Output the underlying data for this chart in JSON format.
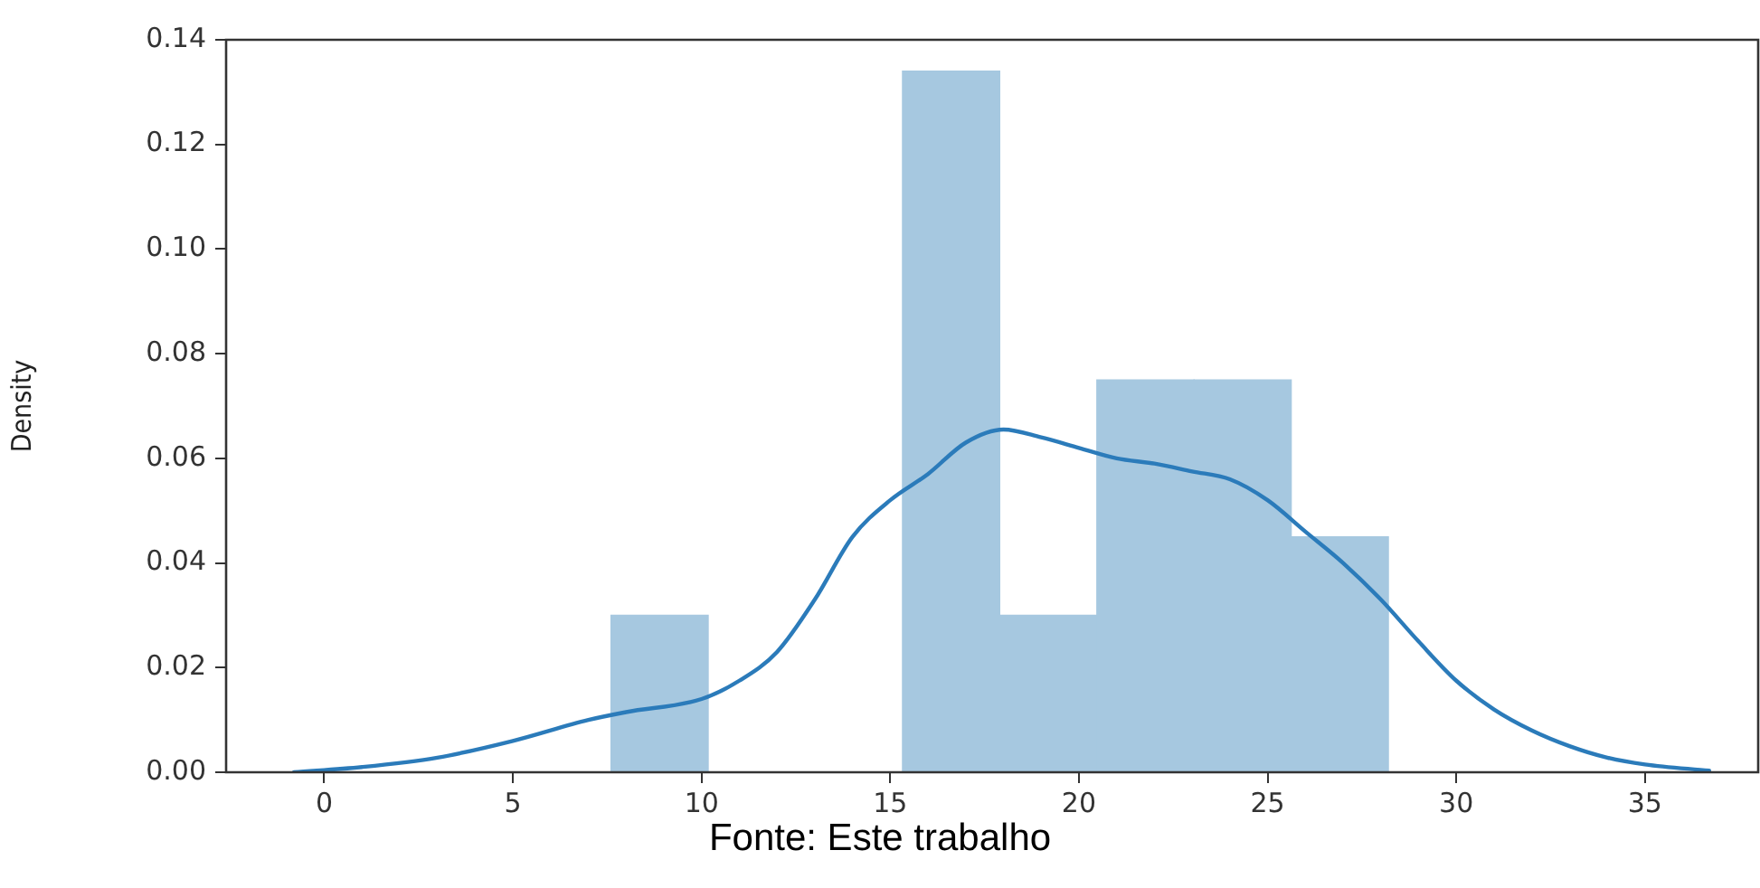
{
  "chart_data": {
    "type": "histogram",
    "ylabel": "Density",
    "annotations": [
      "Fonte: Este trabalho"
    ],
    "bins": [
      7.6,
      10.175,
      12.75,
      15.325,
      17.9,
      20.475,
      23.05,
      25.625,
      28.2
    ],
    "values": [
      0.03,
      0,
      0,
      0.134,
      0.03,
      0.075,
      0.075,
      0.045
    ],
    "color": "#a6c8e0",
    "series": [
      {
        "type": "line",
        "color": "#2b7bba",
        "x": [
          -0.8,
          1,
          3,
          5,
          7,
          8,
          10,
          11,
          12,
          13,
          14,
          15,
          16,
          17,
          18,
          19,
          20,
          21,
          22,
          23,
          24,
          25,
          26,
          27,
          28,
          29,
          30,
          31,
          32,
          33,
          34,
          35,
          36.7
        ],
        "values": [
          0,
          0.001,
          0.0028,
          0.006,
          0.01,
          0.0115,
          0.014,
          0.0175,
          0.023,
          0.033,
          0.045,
          0.052,
          0.057,
          0.063,
          0.0655,
          0.064,
          0.062,
          0.06,
          0.059,
          0.0575,
          0.056,
          0.052,
          0.046,
          0.04,
          0.033,
          0.025,
          0.0175,
          0.012,
          0.008,
          0.005,
          0.0028,
          0.0015,
          0.0003
        ]
      }
    ],
    "xlim": [
      -2.6,
      38
    ],
    "xticks": [
      0,
      5,
      10,
      15,
      20,
      25,
      30,
      35
    ],
    "ylim": [
      0,
      0.14
    ],
    "yticks": [
      {
        "value": 0,
        "label": "0.00"
      },
      {
        "value": 0.02,
        "label": "0.02"
      },
      {
        "value": 0.04,
        "label": "0.04"
      },
      {
        "value": 0.06,
        "label": "0.06"
      },
      {
        "value": 0.08,
        "label": "0.08"
      },
      {
        "value": 0.1,
        "label": "0.10"
      },
      {
        "value": 0.12,
        "label": "0.12"
      },
      {
        "value": 0.14,
        "label": "0.14"
      }
    ],
    "marker": "none",
    "line_style": "solid"
  }
}
